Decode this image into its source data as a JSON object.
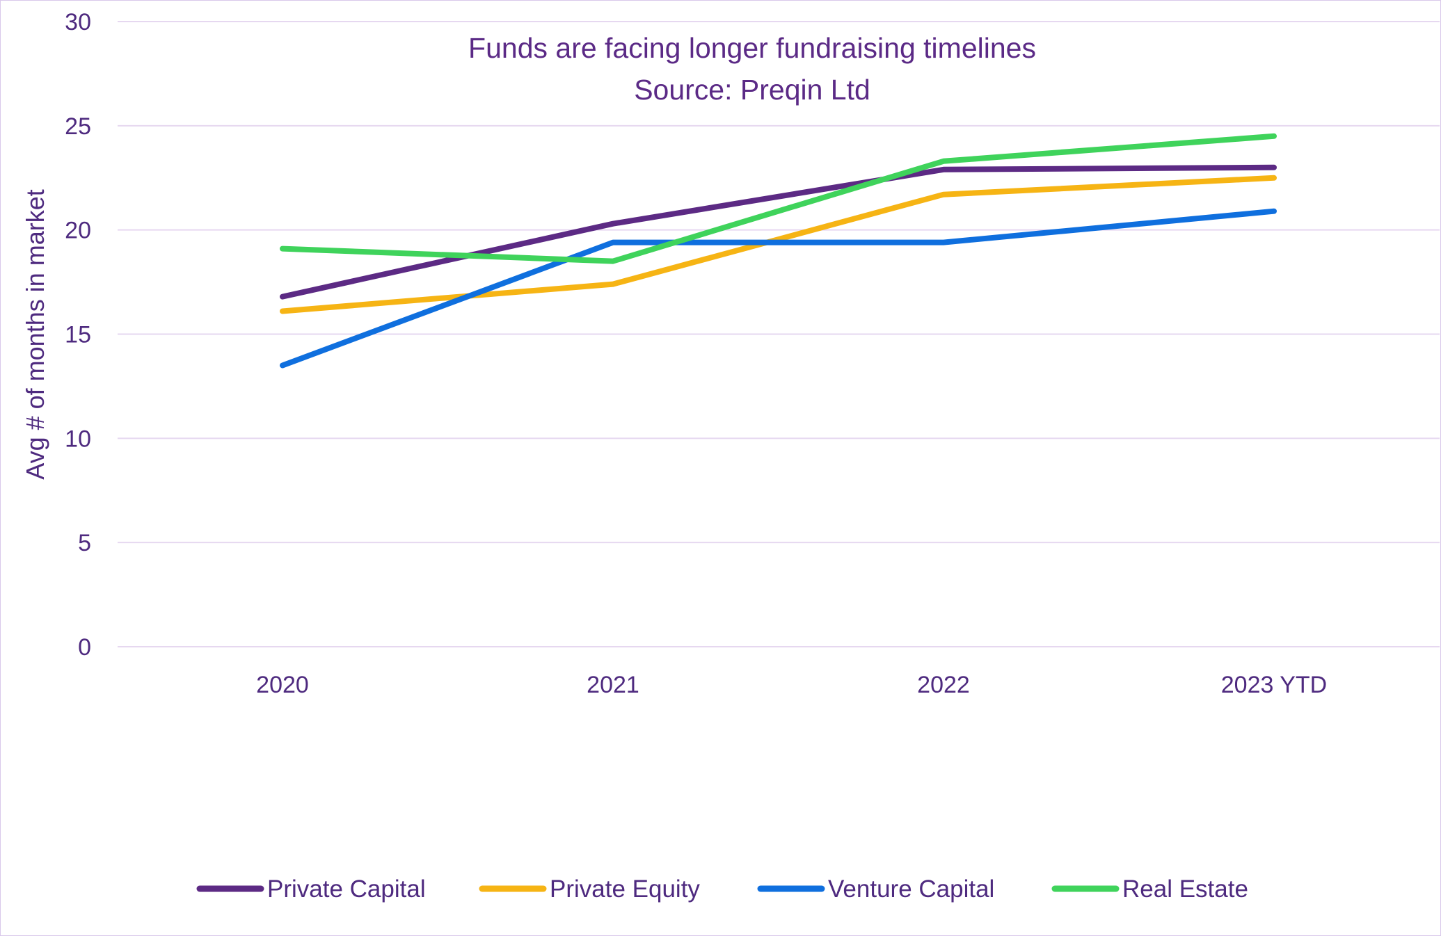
{
  "chart_data": {
    "type": "line",
    "title": "Funds are facing longer fundraising timelines",
    "subtitle": "Source: Preqin Ltd",
    "xlabel": "",
    "ylabel": "Avg # of months in market",
    "categories": [
      "2020",
      "2021",
      "2022",
      "2023 YTD"
    ],
    "ylim": [
      0,
      30
    ],
    "yticks": [
      0,
      5,
      10,
      15,
      20,
      25,
      30
    ],
    "grid": true,
    "legend_position": "bottom",
    "series": [
      {
        "name": "Private Capital",
        "color": "#5c2a84",
        "values": [
          16.8,
          20.3,
          22.9,
          23.0
        ]
      },
      {
        "name": "Private Equity",
        "color": "#f6b414",
        "values": [
          16.1,
          17.4,
          21.7,
          22.5
        ]
      },
      {
        "name": "Venture Capital",
        "color": "#0f6fde",
        "values": [
          13.5,
          19.4,
          19.4,
          20.9
        ]
      },
      {
        "name": "Real Estate",
        "color": "#3fd35b",
        "values": [
          19.1,
          18.5,
          23.3,
          24.5
        ]
      }
    ]
  }
}
